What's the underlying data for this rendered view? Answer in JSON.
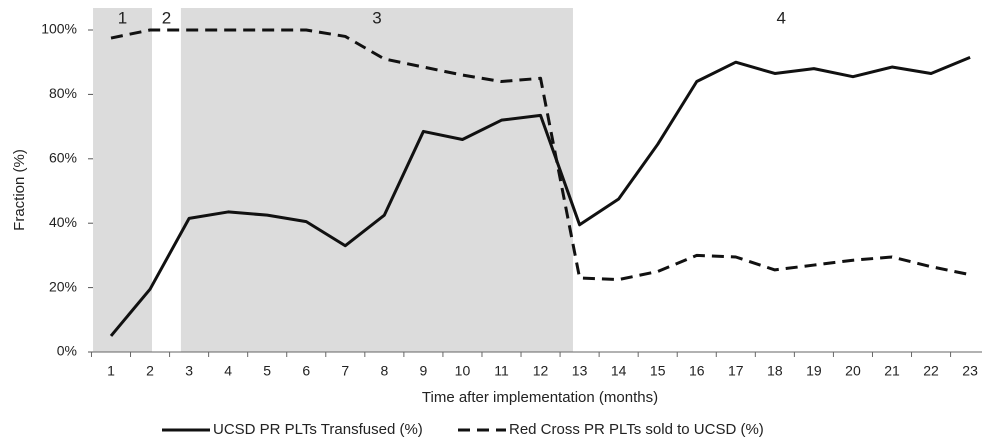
{
  "chart_data": {
    "type": "line",
    "x_label": "Time after implementation (months)",
    "y_label": "Fraction (%)",
    "categories": [
      "1",
      "2",
      "3",
      "4",
      "5",
      "6",
      "7",
      "8",
      "9",
      "10",
      "11",
      "12",
      "13",
      "14",
      "15",
      "16",
      "17",
      "18",
      "19",
      "20",
      "21",
      "22",
      "23"
    ],
    "series": [
      {
        "name": "UCSD PR PLTs Transfused (%)",
        "color": "#111111",
        "dash": false,
        "values": [
          5,
          19.5,
          41.5,
          43.5,
          42.5,
          40.5,
          33,
          42.5,
          68.5,
          66,
          72,
          73.5,
          39.5,
          47.5,
          64.5,
          84,
          90,
          86.5,
          88,
          85.5,
          88.5,
          86.5,
          91.5
        ]
      },
      {
        "name": "Red Cross PR PLTs sold to UCSD (%)",
        "color": "#111111",
        "dash": true,
        "values": [
          97.5,
          100,
          100,
          100,
          100,
          100,
          98,
          91,
          88.5,
          86,
          84,
          85,
          23,
          22.5,
          25,
          30,
          29.5,
          25.5,
          27,
          28.5,
          29.5,
          26.5,
          24
        ]
      }
    ],
    "phases": [
      {
        "label": "1",
        "start": 0.54,
        "end": 2.05,
        "shaded": true
      },
      {
        "label": "2",
        "start": 2.05,
        "end": 2.79,
        "shaded": false
      },
      {
        "label": "3",
        "start": 2.79,
        "end": 12.83,
        "shaded": true
      },
      {
        "label": "4",
        "start": 12.83,
        "end": 23.5,
        "shaded": false
      }
    ],
    "ylim": [
      0,
      100
    ],
    "yticks": [
      {
        "value": 0,
        "label": "0%"
      },
      {
        "value": 20,
        "label": "20%"
      },
      {
        "value": 40,
        "label": "40%"
      },
      {
        "value": 60,
        "label": "60%"
      },
      {
        "value": 80,
        "label": "80%"
      },
      {
        "value": 100,
        "label": "100%"
      }
    ],
    "legend": "bottom"
  }
}
